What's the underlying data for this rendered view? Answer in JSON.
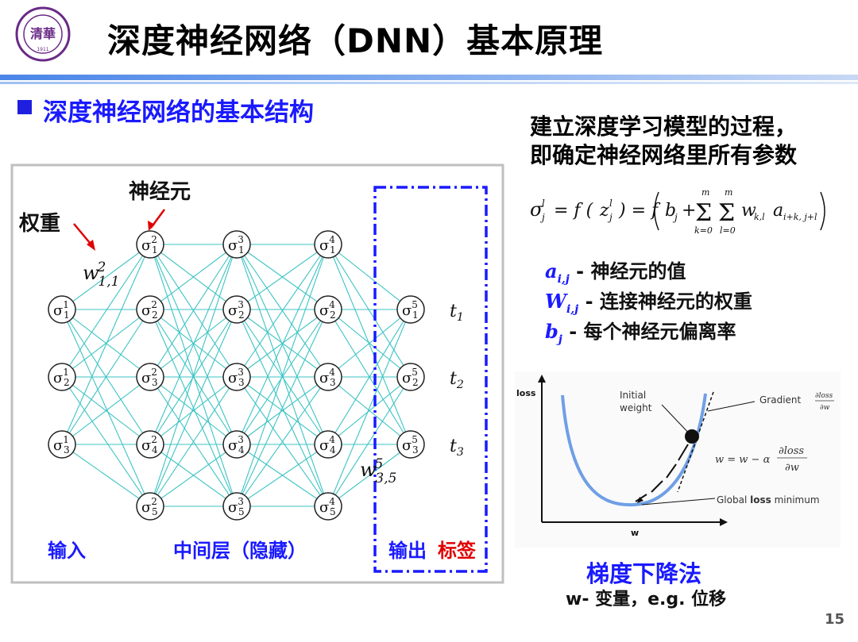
{
  "header": {
    "title": "深度神经网络（DNN）基本原理",
    "logo_text": "TSINGHUA UNIVERSITY 1911"
  },
  "section_title": "深度神经网络的基本结构",
  "network": {
    "label_weight": "权重",
    "label_neuron": "神经元",
    "weight_w11": "w",
    "weight_w11_sup": "2",
    "weight_w11_sub": "1,1",
    "weight_w35": "w",
    "weight_w35_sup": "5",
    "weight_w35_sub": "3,5",
    "layers": [
      {
        "sup": "1",
        "nodes": [
          "1",
          "2",
          "3"
        ]
      },
      {
        "sup": "2",
        "nodes": [
          "1",
          "2",
          "3",
          "4",
          "5"
        ]
      },
      {
        "sup": "3",
        "nodes": [
          "1",
          "2",
          "3",
          "4",
          "5"
        ]
      },
      {
        "sup": "4",
        "nodes": [
          "1",
          "2",
          "3",
          "4",
          "5"
        ]
      },
      {
        "sup": "5",
        "nodes": [
          "1",
          "2",
          "3"
        ]
      }
    ],
    "targets": [
      "t1",
      "t2",
      "t3"
    ],
    "label_input": "输入",
    "label_hidden": "中间层（隐藏）",
    "label_output": "输出",
    "label_tag": "标签",
    "colors": {
      "edge": "#3cc3c3",
      "frame": "#bfbfbf",
      "dash": "#1a1aff",
      "arrow": "#e00000"
    }
  },
  "right_panel": {
    "note_line1": "建立深度学习模型的过程，",
    "note_line2": "即确定神经网络里所有参数",
    "formula": {
      "lhs": "σ",
      "f1": "= f (",
      "z": "z",
      "f2": ") = f",
      "b": "b",
      "plus": "+",
      "sum_top": "m",
      "sum_bottom1": "k=0",
      "sum_bottom2": "l=0",
      "w": "w",
      "w_sub": "k,l",
      "a": "a",
      "a_sub": "i+k, j+l",
      "sup": "l",
      "sub": "j"
    },
    "legend": [
      {
        "sym": "a",
        "sub": "i,j",
        "text": "  - 神经元的值"
      },
      {
        "sym": "W",
        "sub": "i,j",
        "text": " - 连接神经元的权重"
      },
      {
        "sym": "b",
        "sub": "j",
        "text": "  - 每个神经元偏离率"
      }
    ],
    "gd_chart": {
      "ylabel": "loss",
      "xlabel": "w",
      "initial_weight": "Initial weight",
      "initial_weight_l1": "Initial",
      "initial_weight_l2": "weight",
      "gradient_label": "Gradient",
      "gradient_frac_num": "∂loss",
      "gradient_frac_den": "∂w",
      "update_rule_lhs": "w = w − α",
      "global_min_prefix": "Global ",
      "global_min_bold": "loss",
      "global_min_suffix": " minimum"
    },
    "gd_title": "梯度下降法",
    "gd_subtitle": "w- 变量，e.g. 位移"
  },
  "page_number": "15"
}
